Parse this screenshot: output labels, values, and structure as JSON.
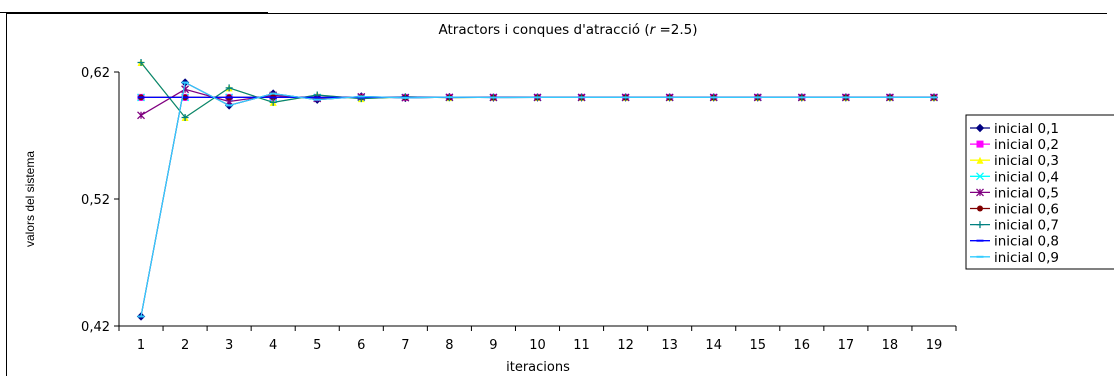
{
  "chart_data": {
    "type": "line",
    "title_parts": {
      "prefix": "Atractors i conques d'atracció (",
      "italic": "r",
      "suffix": " =2.5)"
    },
    "xlabel": "iteracions",
    "ylabel": "valors del sistema",
    "categories": [
      "1",
      "2",
      "3",
      "4",
      "5",
      "6",
      "7",
      "8",
      "9",
      "10",
      "11",
      "12",
      "13",
      "14",
      "15",
      "16",
      "17",
      "18",
      "19"
    ],
    "y_ticks": [
      "0,62",
      "0,52",
      "0,42"
    ],
    "ylim": [
      0.42,
      0.62
    ],
    "grid": false,
    "legend_position": "right",
    "series": [
      {
        "name": "inicial 0,1",
        "color": "#000080",
        "marker": "diamond",
        "values": [
          0.4275,
          0.6117,
          0.5937,
          0.603,
          0.5982,
          0.6007,
          0.5996,
          0.6002,
          0.5999,
          0.6,
          0.6,
          0.6,
          0.6,
          0.6,
          0.6,
          0.6,
          0.6,
          0.6,
          0.6
        ]
      },
      {
        "name": "inicial 0,2",
        "color": "#ff00ff",
        "marker": "square",
        "values": [
          0.6,
          0.6,
          0.6,
          0.6,
          0.6,
          0.6,
          0.6,
          0.6,
          0.6,
          0.6,
          0.6,
          0.6,
          0.6,
          0.6,
          0.6,
          0.6,
          0.6,
          0.6,
          0.6
        ]
      },
      {
        "name": "inicial 0,3",
        "color": "#ffff00",
        "marker": "triangle",
        "values": [
          0.6275,
          0.5842,
          0.6075,
          0.5961,
          0.6019,
          0.599,
          0.6005,
          0.5998,
          0.6001,
          0.6,
          0.6,
          0.6,
          0.6,
          0.6,
          0.6,
          0.6,
          0.6,
          0.6,
          0.6
        ]
      },
      {
        "name": "inicial 0,4",
        "color": "#00ffff",
        "marker": "x",
        "values": [
          0.6,
          0.6,
          0.6,
          0.6,
          0.6,
          0.6,
          0.6,
          0.6,
          0.6,
          0.6,
          0.6,
          0.6,
          0.6,
          0.6,
          0.6,
          0.6,
          0.6,
          0.6,
          0.6
        ]
      },
      {
        "name": "inicial 0,5",
        "color": "#800080",
        "marker": "star",
        "values": [
          0.5859,
          0.6064,
          0.5968,
          0.6016,
          0.5992,
          0.6004,
          0.5998,
          0.6001,
          0.6,
          0.6,
          0.6,
          0.6,
          0.6,
          0.6,
          0.6,
          0.6,
          0.6,
          0.6,
          0.6
        ]
      },
      {
        "name": "inicial 0,6",
        "color": "#800000",
        "marker": "circle",
        "values": [
          0.6,
          0.6,
          0.6,
          0.6,
          0.6,
          0.6,
          0.6,
          0.6,
          0.6,
          0.6,
          0.6,
          0.6,
          0.6,
          0.6,
          0.6,
          0.6,
          0.6,
          0.6,
          0.6
        ]
      },
      {
        "name": "inicial 0,7",
        "color": "#008080",
        "marker": "plus",
        "values": [
          0.6275,
          0.5842,
          0.6075,
          0.5961,
          0.6019,
          0.599,
          0.6005,
          0.5998,
          0.6001,
          0.6,
          0.6,
          0.6,
          0.6,
          0.6,
          0.6,
          0.6,
          0.6,
          0.6,
          0.6
        ]
      },
      {
        "name": "inicial 0,8",
        "color": "#0000ff",
        "marker": "dash",
        "values": [
          0.6,
          0.6,
          0.6,
          0.6,
          0.6,
          0.6,
          0.6,
          0.6,
          0.6,
          0.6,
          0.6,
          0.6,
          0.6,
          0.6,
          0.6,
          0.6,
          0.6,
          0.6,
          0.6
        ]
      },
      {
        "name": "inicial 0,9",
        "color": "#33ccff",
        "marker": "dash",
        "values": [
          0.4275,
          0.6117,
          0.5937,
          0.603,
          0.5982,
          0.6007,
          0.5996,
          0.6002,
          0.5999,
          0.6,
          0.6,
          0.6,
          0.6,
          0.6,
          0.6,
          0.6,
          0.6,
          0.6,
          0.6
        ]
      }
    ]
  }
}
